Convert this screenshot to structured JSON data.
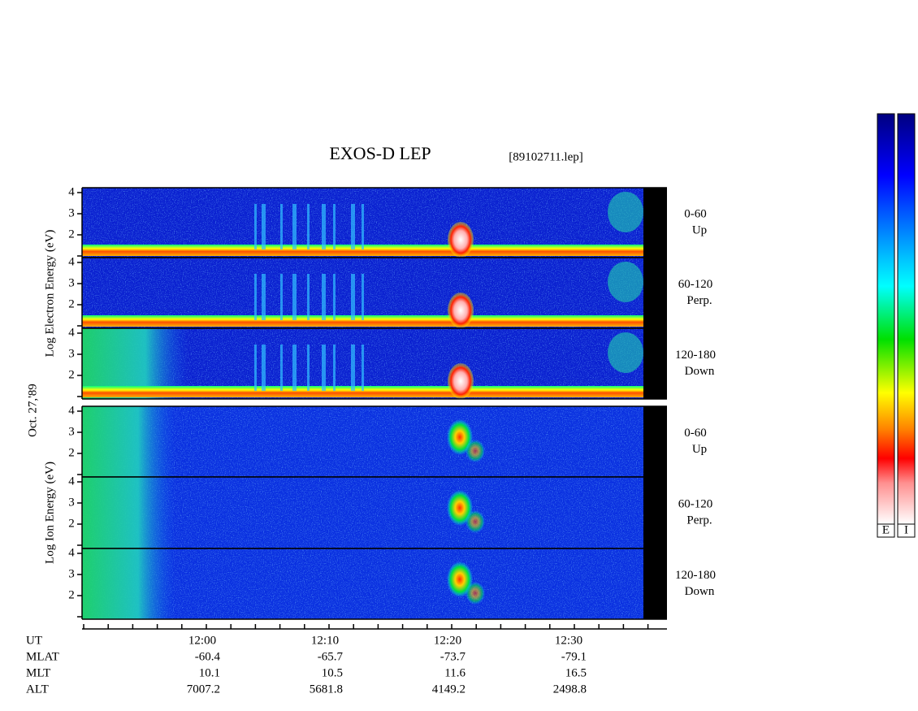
{
  "title": "EXOS-D LEP",
  "file": "[89102711.lep]",
  "date": "Oct. 27,'89",
  "electron_label": "Log Electron Energy (eV)",
  "ion_label": "Log Ion Energy (eV)",
  "energy_ticks": [
    4,
    3,
    2
  ],
  "pitch_angles": [
    {
      "range": "0-60",
      "label": "Up"
    },
    {
      "range": "60-120",
      "label": "Perp."
    },
    {
      "range": "120-180",
      "label": "Down"
    }
  ],
  "time_axis": {
    "rows": [
      {
        "name": "UT",
        "values": [
          "12:00",
          "12:10",
          "12:20",
          "12:30"
        ]
      },
      {
        "name": "MLAT",
        "values": [
          "-60.4",
          "-65.7",
          "-73.7",
          "-79.1"
        ]
      },
      {
        "name": "MLT",
        "values": [
          "10.1",
          "10.5",
          "11.6",
          "16.5"
        ]
      },
      {
        "name": "ALT",
        "values": [
          "7007.2",
          "5681.8",
          "4149.2",
          "2498.8"
        ]
      }
    ]
  },
  "colorbars": [
    "E",
    "I"
  ]
}
